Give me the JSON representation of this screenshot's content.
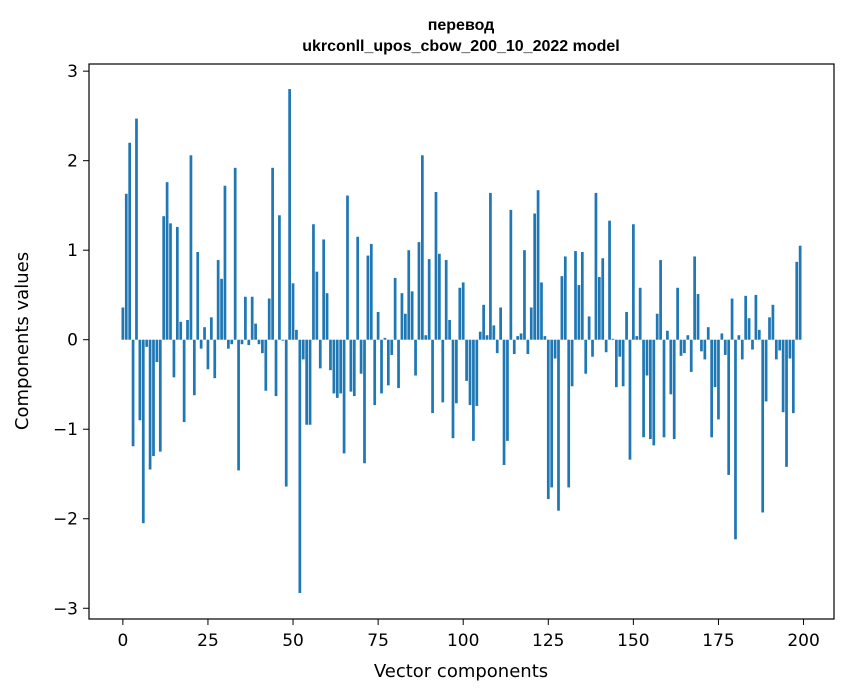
{
  "chart_data": {
    "type": "bar",
    "title": "перевод",
    "subtitle": "ukrconll_upos_cbow_200_10_2022 model",
    "xlabel": "Vector components",
    "ylabel": "Components values",
    "xlim": [
      -9.95,
      208.95
    ],
    "ylim": [
      -3.12,
      3.08
    ],
    "xticks": [
      0,
      25,
      50,
      75,
      100,
      125,
      150,
      175,
      200
    ],
    "xtick_labels": [
      "0",
      "25",
      "50",
      "75",
      "100",
      "125",
      "150",
      "175",
      "200"
    ],
    "yticks": [
      -3,
      -2,
      -1,
      0,
      1,
      2,
      3
    ],
    "ytick_labels": [
      "−3",
      "−2",
      "−1",
      "0",
      "1",
      "2",
      "3"
    ],
    "grid": false,
    "bar_color": "#1f77b4",
    "x": [
      0,
      1,
      2,
      3,
      4,
      5,
      6,
      7,
      8,
      9,
      10,
      11,
      12,
      13,
      14,
      15,
      16,
      17,
      18,
      19,
      20,
      21,
      22,
      23,
      24,
      25,
      26,
      27,
      28,
      29,
      30,
      31,
      32,
      33,
      34,
      35,
      36,
      37,
      38,
      39,
      40,
      41,
      42,
      43,
      44,
      45,
      46,
      47,
      48,
      49,
      50,
      51,
      52,
      53,
      54,
      55,
      56,
      57,
      58,
      59,
      60,
      61,
      62,
      63,
      64,
      65,
      66,
      67,
      68,
      69,
      70,
      71,
      72,
      73,
      74,
      75,
      76,
      77,
      78,
      79,
      80,
      81,
      82,
      83,
      84,
      85,
      86,
      87,
      88,
      89,
      90,
      91,
      92,
      93,
      94,
      95,
      96,
      97,
      98,
      99,
      100,
      101,
      102,
      103,
      104,
      105,
      106,
      107,
      108,
      109,
      110,
      111,
      112,
      113,
      114,
      115,
      116,
      117,
      118,
      119,
      120,
      121,
      122,
      123,
      124,
      125,
      126,
      127,
      128,
      129,
      130,
      131,
      132,
      133,
      134,
      135,
      136,
      137,
      138,
      139,
      140,
      141,
      142,
      143,
      144,
      145,
      146,
      147,
      148,
      149,
      150,
      151,
      152,
      153,
      154,
      155,
      156,
      157,
      158,
      159,
      160,
      161,
      162,
      163,
      164,
      165,
      166,
      167,
      168,
      169,
      170,
      171,
      172,
      173,
      174,
      175,
      176,
      177,
      178,
      179,
      180,
      181,
      182,
      183,
      184,
      185,
      186,
      187,
      188,
      189,
      190,
      191,
      192,
      193,
      194,
      195,
      196,
      197,
      198,
      199
    ],
    "values": [
      0.36,
      1.63,
      2.2,
      -1.19,
      2.47,
      -0.9,
      -2.05,
      -0.08,
      -1.45,
      -1.3,
      -0.25,
      -1.25,
      1.38,
      1.76,
      1.3,
      -0.42,
      1.26,
      0.2,
      -0.92,
      0.22,
      2.06,
      -0.62,
      0.98,
      -0.1,
      0.14,
      -0.33,
      0.25,
      -0.43,
      0.89,
      0.68,
      1.72,
      -0.1,
      -0.05,
      1.92,
      -1.46,
      -0.05,
      0.48,
      -0.06,
      0.48,
      0.18,
      -0.05,
      -0.15,
      -0.57,
      0.46,
      1.92,
      -0.63,
      1.39,
      -0.01,
      -1.64,
      2.8,
      0.63,
      0.11,
      -2.83,
      -0.22,
      -0.95,
      -0.95,
      1.29,
      0.76,
      -0.32,
      1.12,
      0.52,
      -0.34,
      -0.6,
      -0.65,
      -0.6,
      -1.27,
      1.61,
      -0.58,
      -0.63,
      1.15,
      -0.38,
      -1.38,
      0.94,
      1.07,
      -0.73,
      0.31,
      -0.6,
      0.02,
      -0.51,
      -0.17,
      0.69,
      -0.54,
      0.52,
      0.29,
      1.0,
      0.54,
      -0.4,
      1.09,
      2.06,
      0.05,
      0.9,
      -0.82,
      1.65,
      0.96,
      -0.7,
      0.89,
      0.22,
      -1.1,
      -0.71,
      0.58,
      0.64,
      -0.46,
      -0.73,
      -1.13,
      -0.74,
      0.09,
      0.39,
      0.05,
      1.64,
      0.16,
      -0.15,
      0.36,
      -1.4,
      -1.13,
      1.45,
      -0.16,
      0.04,
      0.07,
      1.0,
      -0.16,
      0.36,
      1.41,
      1.67,
      0.64,
      0.04,
      -1.78,
      -1.65,
      -0.21,
      -1.91,
      0.71,
      0.93,
      -1.65,
      -0.52,
      0.99,
      0.61,
      0.98,
      -0.38,
      0.26,
      -0.19,
      1.64,
      0.7,
      0.91,
      -0.14,
      1.33,
      0.01,
      -0.53,
      -0.19,
      -0.52,
      0.31,
      -1.34,
      1.29,
      0.04,
      0.58,
      -1.09,
      -0.4,
      -1.11,
      -1.18,
      0.29,
      0.89,
      -1.09,
      0.1,
      -0.61,
      -1.11,
      0.58,
      -0.18,
      -0.15,
      0.05,
      -0.36,
      0.93,
      0.51,
      -0.13,
      -0.22,
      0.14,
      -1.09,
      -0.53,
      -0.89,
      0.07,
      -0.17,
      -1.51,
      0.46,
      -2.23,
      0.05,
      -0.22,
      0.49,
      0.24,
      -0.11,
      0.5,
      0.11,
      -1.93,
      -0.69,
      0.25,
      0.39,
      -0.22,
      -0.12,
      -0.81,
      -1.42,
      -0.21,
      -0.82,
      0.87,
      1.05
    ]
  }
}
